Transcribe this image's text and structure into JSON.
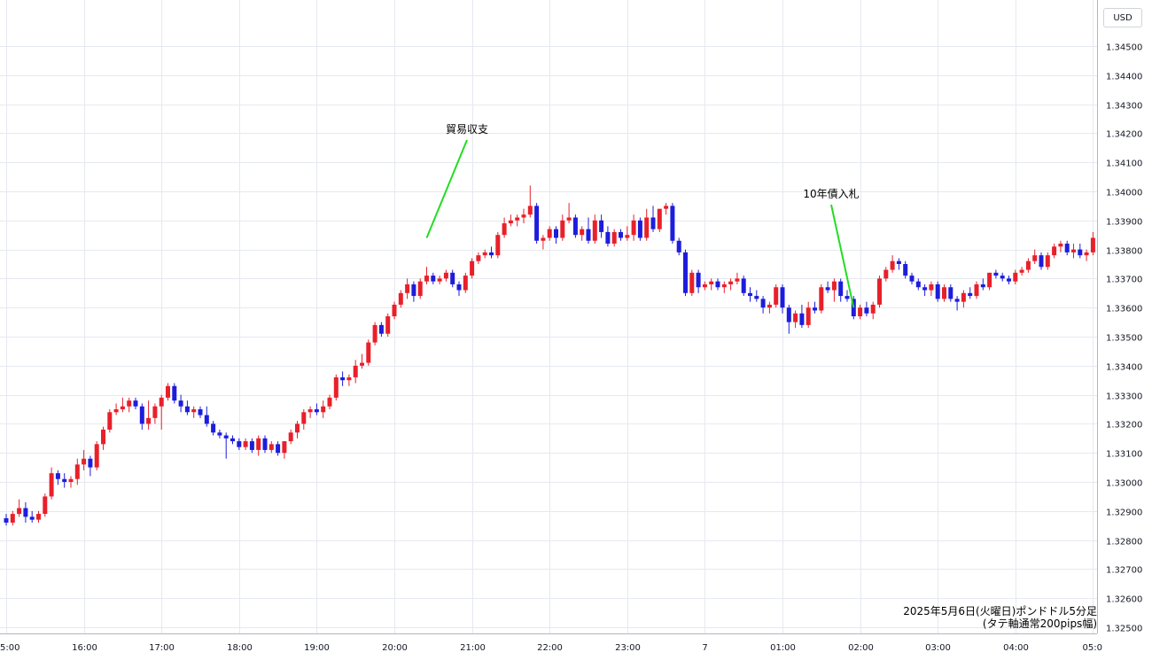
{
  "currency_badge": "USD",
  "caption": {
    "line1": "2025年5月6日(火曜日)ポンドドル5分足",
    "line2": "(タテ軸通常200pips幅)"
  },
  "colors": {
    "up": "#e8202a",
    "down": "#1d1ddc",
    "annotation_line": "#22dd22",
    "grid": "#e6e9f0"
  },
  "chart_data": {
    "type": "candlestick",
    "y_ticks": [
      "1.32500",
      "1.32600",
      "1.32700",
      "1.32800",
      "1.32900",
      "1.33000",
      "1.33100",
      "1.33200",
      "1.33300",
      "1.33400",
      "1.33500",
      "1.33600",
      "1.33700",
      "1.33800",
      "1.33900",
      "1.34000",
      "1.34100",
      "1.34200",
      "1.34300",
      "1.34400",
      "1.34500"
    ],
    "ylim": [
      1.3248,
      1.3465
    ],
    "x_ticks": [
      {
        "label": "5:00",
        "t": 0
      },
      {
        "label": "16:00",
        "t": 12
      },
      {
        "label": "17:00",
        "t": 24
      },
      {
        "label": "18:00",
        "t": 36
      },
      {
        "label": "19:00",
        "t": 48
      },
      {
        "label": "20:00",
        "t": 60
      },
      {
        "label": "21:00",
        "t": 72
      },
      {
        "label": "22:00",
        "t": 84
      },
      {
        "label": "23:00",
        "t": 96
      },
      {
        "label": "7",
        "t": 108
      },
      {
        "label": "01:00",
        "t": 120
      },
      {
        "label": "02:00",
        "t": 132
      },
      {
        "label": "03:00",
        "t": 144
      },
      {
        "label": "04:00",
        "t": 156
      },
      {
        "label": "05:0",
        "t": 168
      }
    ],
    "candles": [
      [
        1.32875,
        1.3289,
        1.3285,
        1.3286
      ],
      [
        1.3286,
        1.329,
        1.3285,
        1.3289
      ],
      [
        1.3289,
        1.3294,
        1.3288,
        1.3291
      ],
      [
        1.3291,
        1.3293,
        1.3286,
        1.3288
      ],
      [
        1.3288,
        1.329,
        1.3286,
        1.3287
      ],
      [
        1.3287,
        1.329,
        1.3286,
        1.3289
      ],
      [
        1.3289,
        1.3296,
        1.3288,
        1.3295
      ],
      [
        1.3295,
        1.3305,
        1.3294,
        1.3303
      ],
      [
        1.3303,
        1.3304,
        1.3299,
        1.3301
      ],
      [
        1.3301,
        1.3303,
        1.3298,
        1.33
      ],
      [
        1.33,
        1.3302,
        1.3298,
        1.3301
      ],
      [
        1.3301,
        1.3308,
        1.3299,
        1.3306
      ],
      [
        1.3306,
        1.3311,
        1.3304,
        1.3308
      ],
      [
        1.3308,
        1.3309,
        1.3302,
        1.3305
      ],
      [
        1.3305,
        1.3314,
        1.3304,
        1.3313
      ],
      [
        1.3313,
        1.3319,
        1.3311,
        1.3318
      ],
      [
        1.3318,
        1.3325,
        1.3317,
        1.3324
      ],
      [
        1.3324,
        1.3327,
        1.3323,
        1.3325
      ],
      [
        1.3325,
        1.3329,
        1.3324,
        1.3326
      ],
      [
        1.3326,
        1.3329,
        1.3324,
        1.3328
      ],
      [
        1.3328,
        1.3329,
        1.3325,
        1.3326
      ],
      [
        1.3326,
        1.3327,
        1.3318,
        1.332
      ],
      [
        1.332,
        1.3328,
        1.3318,
        1.3322
      ],
      [
        1.3322,
        1.3327,
        1.332,
        1.3326
      ],
      [
        1.3326,
        1.333,
        1.3318,
        1.3329
      ],
      [
        1.3329,
        1.3334,
        1.3328,
        1.3333
      ],
      [
        1.3333,
        1.3334,
        1.3327,
        1.3328
      ],
      [
        1.3328,
        1.333,
        1.3324,
        1.3326
      ],
      [
        1.3326,
        1.3328,
        1.3323,
        1.3324
      ],
      [
        1.3324,
        1.3326,
        1.3322,
        1.3325
      ],
      [
        1.3325,
        1.3326,
        1.3322,
        1.3323
      ],
      [
        1.3323,
        1.3326,
        1.3319,
        1.332
      ],
      [
        1.332,
        1.3321,
        1.3316,
        1.3317
      ],
      [
        1.3317,
        1.3318,
        1.3315,
        1.3316
      ],
      [
        1.3316,
        1.3317,
        1.3308,
        1.3315
      ],
      [
        1.3315,
        1.3316,
        1.3313,
        1.3314
      ],
      [
        1.3314,
        1.3315,
        1.3311,
        1.3312
      ],
      [
        1.3312,
        1.3315,
        1.3311,
        1.3314
      ],
      [
        1.3314,
        1.3315,
        1.331,
        1.3311
      ],
      [
        1.3311,
        1.3316,
        1.3309,
        1.3315
      ],
      [
        1.3315,
        1.3316,
        1.331,
        1.3311
      ],
      [
        1.3311,
        1.3314,
        1.331,
        1.3313
      ],
      [
        1.3313,
        1.3314,
        1.3309,
        1.331
      ],
      [
        1.331,
        1.3314,
        1.3308,
        1.3314
      ],
      [
        1.3314,
        1.3318,
        1.3313,
        1.3317
      ],
      [
        1.3317,
        1.3321,
        1.3315,
        1.332
      ],
      [
        1.332,
        1.3325,
        1.3318,
        1.3324
      ],
      [
        1.3324,
        1.3326,
        1.3322,
        1.3325
      ],
      [
        1.3325,
        1.3327,
        1.3323,
        1.3324
      ],
      [
        1.3324,
        1.3328,
        1.3322,
        1.3326
      ],
      [
        1.3326,
        1.333,
        1.3325,
        1.3329
      ],
      [
        1.3329,
        1.3337,
        1.3328,
        1.3336
      ],
      [
        1.3336,
        1.3338,
        1.3333,
        1.3335
      ],
      [
        1.3335,
        1.3337,
        1.3333,
        1.3336
      ],
      [
        1.3336,
        1.3342,
        1.3334,
        1.334
      ],
      [
        1.334,
        1.3344,
        1.3339,
        1.3341
      ],
      [
        1.3341,
        1.3349,
        1.334,
        1.3348
      ],
      [
        1.3348,
        1.3355,
        1.3347,
        1.3354
      ],
      [
        1.3354,
        1.3355,
        1.335,
        1.3351
      ],
      [
        1.3351,
        1.3358,
        1.335,
        1.3357
      ],
      [
        1.3357,
        1.3362,
        1.3356,
        1.3361
      ],
      [
        1.3361,
        1.3366,
        1.336,
        1.3365
      ],
      [
        1.3365,
        1.337,
        1.3363,
        1.3368
      ],
      [
        1.3368,
        1.3369,
        1.3362,
        1.3364
      ],
      [
        1.3364,
        1.337,
        1.3363,
        1.3369
      ],
      [
        1.3369,
        1.3374,
        1.3368,
        1.3371
      ],
      [
        1.3371,
        1.3372,
        1.3368,
        1.3369
      ],
      [
        1.3369,
        1.3371,
        1.3368,
        1.337
      ],
      [
        1.337,
        1.3373,
        1.3369,
        1.3372
      ],
      [
        1.3372,
        1.3373,
        1.3367,
        1.3368
      ],
      [
        1.3368,
        1.3369,
        1.3364,
        1.3366
      ],
      [
        1.3366,
        1.3372,
        1.3365,
        1.3371
      ],
      [
        1.3371,
        1.3377,
        1.337,
        1.3376
      ],
      [
        1.3376,
        1.3379,
        1.3375,
        1.3378
      ],
      [
        1.3378,
        1.338,
        1.3377,
        1.3379
      ],
      [
        1.3379,
        1.3381,
        1.3377,
        1.3378
      ],
      [
        1.3378,
        1.3386,
        1.3377,
        1.3385
      ],
      [
        1.3385,
        1.3391,
        1.3384,
        1.3389
      ],
      [
        1.3389,
        1.3392,
        1.3388,
        1.339
      ],
      [
        1.339,
        1.3392,
        1.3388,
        1.3391
      ],
      [
        1.3391,
        1.3394,
        1.3389,
        1.3392
      ],
      [
        1.3392,
        1.3402,
        1.3391,
        1.3395
      ],
      [
        1.3395,
        1.3396,
        1.3382,
        1.3383
      ],
      [
        1.3383,
        1.3385,
        1.338,
        1.3384
      ],
      [
        1.3384,
        1.3388,
        1.3383,
        1.3387
      ],
      [
        1.3387,
        1.3388,
        1.3382,
        1.3384
      ],
      [
        1.3384,
        1.3392,
        1.3383,
        1.339
      ],
      [
        1.339,
        1.3396,
        1.3389,
        1.3391
      ],
      [
        1.3391,
        1.3392,
        1.3384,
        1.3385
      ],
      [
        1.3385,
        1.3388,
        1.3383,
        1.3387
      ],
      [
        1.3387,
        1.3391,
        1.3382,
        1.3383
      ],
      [
        1.3383,
        1.3392,
        1.3382,
        1.339
      ],
      [
        1.339,
        1.3392,
        1.3384,
        1.3386
      ],
      [
        1.3386,
        1.3388,
        1.3381,
        1.3382
      ],
      [
        1.3382,
        1.3387,
        1.3381,
        1.3386
      ],
      [
        1.3386,
        1.3387,
        1.3383,
        1.3384
      ],
      [
        1.3384,
        1.3388,
        1.3383,
        1.3385
      ],
      [
        1.3385,
        1.3392,
        1.3383,
        1.339
      ],
      [
        1.339,
        1.3391,
        1.3383,
        1.3384
      ],
      [
        1.3384,
        1.3394,
        1.3383,
        1.3391
      ],
      [
        1.3391,
        1.3395,
        1.3386,
        1.3387
      ],
      [
        1.3387,
        1.3392,
        1.3386,
        1.3394
      ],
      [
        1.3394,
        1.3396,
        1.3392,
        1.3395
      ],
      [
        1.3395,
        1.3396,
        1.3382,
        1.3383
      ],
      [
        1.3383,
        1.3384,
        1.3378,
        1.3379
      ],
      [
        1.3379,
        1.338,
        1.3364,
        1.3365
      ],
      [
        1.3365,
        1.3373,
        1.3364,
        1.3372
      ],
      [
        1.3372,
        1.3373,
        1.3365,
        1.3367
      ],
      [
        1.3367,
        1.3369,
        1.3366,
        1.3368
      ],
      [
        1.3368,
        1.337,
        1.3366,
        1.3369
      ],
      [
        1.3369,
        1.337,
        1.3366,
        1.3367
      ],
      [
        1.3367,
        1.3369,
        1.3365,
        1.3368
      ],
      [
        1.3368,
        1.337,
        1.3366,
        1.3369
      ],
      [
        1.3369,
        1.3372,
        1.3368,
        1.337
      ],
      [
        1.337,
        1.3371,
        1.3364,
        1.3365
      ],
      [
        1.3365,
        1.3367,
        1.3362,
        1.3364
      ],
      [
        1.3364,
        1.3366,
        1.3362,
        1.3363
      ],
      [
        1.3363,
        1.3364,
        1.3358,
        1.336
      ],
      [
        1.336,
        1.3362,
        1.3358,
        1.3361
      ],
      [
        1.3361,
        1.3368,
        1.336,
        1.3367
      ],
      [
        1.3367,
        1.3368,
        1.3358,
        1.336
      ],
      [
        1.336,
        1.3361,
        1.3351,
        1.3355
      ],
      [
        1.3355,
        1.3359,
        1.3353,
        1.3358
      ],
      [
        1.3358,
        1.3361,
        1.3353,
        1.3354
      ],
      [
        1.3354,
        1.3362,
        1.3353,
        1.336
      ],
      [
        1.336,
        1.3362,
        1.3358,
        1.3359
      ],
      [
        1.3359,
        1.3368,
        1.3358,
        1.3367
      ],
      [
        1.3367,
        1.3369,
        1.3365,
        1.3366
      ],
      [
        1.3366,
        1.337,
        1.3362,
        1.3369
      ],
      [
        1.3369,
        1.337,
        1.3362,
        1.3364
      ],
      [
        1.3364,
        1.3366,
        1.3362,
        1.3363
      ],
      [
        1.3363,
        1.3364,
        1.3356,
        1.3357
      ],
      [
        1.3357,
        1.3361,
        1.3356,
        1.336
      ],
      [
        1.336,
        1.3362,
        1.3357,
        1.3358
      ],
      [
        1.3358,
        1.3362,
        1.3356,
        1.3361
      ],
      [
        1.3361,
        1.3371,
        1.336,
        1.337
      ],
      [
        1.337,
        1.3374,
        1.3369,
        1.3373
      ],
      [
        1.3373,
        1.3378,
        1.3372,
        1.3376
      ],
      [
        1.3376,
        1.3377,
        1.3373,
        1.3375
      ],
      [
        1.3375,
        1.3376,
        1.337,
        1.3371
      ],
      [
        1.3371,
        1.3372,
        1.3368,
        1.3369
      ],
      [
        1.3369,
        1.337,
        1.3366,
        1.3367
      ],
      [
        1.3367,
        1.3368,
        1.3364,
        1.3366
      ],
      [
        1.3366,
        1.3369,
        1.3364,
        1.3368
      ],
      [
        1.3368,
        1.3369,
        1.3362,
        1.3363
      ],
      [
        1.3363,
        1.3368,
        1.3362,
        1.3367
      ],
      [
        1.3367,
        1.3368,
        1.3362,
        1.3363
      ],
      [
        1.3363,
        1.3364,
        1.3359,
        1.3362
      ],
      [
        1.3362,
        1.3366,
        1.336,
        1.3365
      ],
      [
        1.3365,
        1.3367,
        1.3363,
        1.3364
      ],
      [
        1.3364,
        1.3369,
        1.3363,
        1.3368
      ],
      [
        1.3368,
        1.337,
        1.3366,
        1.3367
      ],
      [
        1.3367,
        1.3372,
        1.3366,
        1.3372
      ],
      [
        1.3372,
        1.3373,
        1.337,
        1.3371
      ],
      [
        1.3371,
        1.3372,
        1.3369,
        1.337
      ],
      [
        1.337,
        1.3371,
        1.3368,
        1.3369
      ],
      [
        1.3369,
        1.3373,
        1.3368,
        1.3372
      ],
      [
        1.3372,
        1.3374,
        1.3371,
        1.3373
      ],
      [
        1.3373,
        1.3377,
        1.3372,
        1.3376
      ],
      [
        1.3376,
        1.338,
        1.3375,
        1.3378
      ],
      [
        1.3378,
        1.3379,
        1.3373,
        1.3374
      ],
      [
        1.3374,
        1.3379,
        1.3373,
        1.3378
      ],
      [
        1.3378,
        1.3382,
        1.3377,
        1.3381
      ],
      [
        1.3381,
        1.3383,
        1.3379,
        1.3382
      ],
      [
        1.3382,
        1.3383,
        1.3378,
        1.3379
      ],
      [
        1.3379,
        1.3382,
        1.3377,
        1.338
      ],
      [
        1.338,
        1.3382,
        1.3377,
        1.3378
      ],
      [
        1.3378,
        1.338,
        1.3376,
        1.3379
      ],
      [
        1.3379,
        1.3386,
        1.3378,
        1.3384
      ],
      [
        1.3384,
        1.3385,
        1.3382,
        1.3384
      ],
      [
        1.3384,
        1.3385,
        1.3377,
        1.3379
      ],
      [
        1.3379,
        1.3379,
        1.3377,
        1.3378
      ]
    ],
    "annotations": [
      {
        "label": "貿易収支",
        "t": 65,
        "price": 1.3384
      },
      {
        "label": "10年債入札",
        "t": 131,
        "price": 1.336
      }
    ]
  }
}
